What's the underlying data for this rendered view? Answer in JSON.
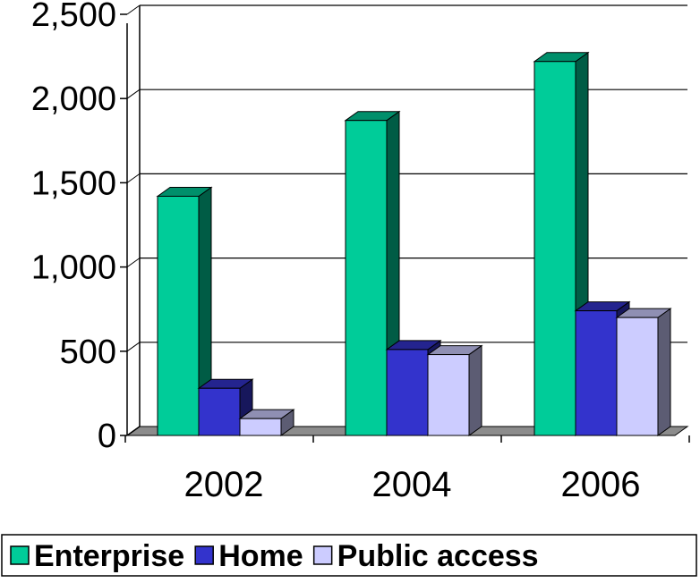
{
  "chart_data": {
    "type": "bar",
    "style": "3d-clustered",
    "categories": [
      "2002",
      "2004",
      "2006"
    ],
    "series": [
      {
        "name": "Enterprise",
        "values": [
          1420,
          1870,
          2220
        ],
        "color": "#00CC99"
      },
      {
        "name": "Home",
        "values": [
          280,
          510,
          740
        ],
        "color": "#3333CC"
      },
      {
        "name": "Public access",
        "values": [
          100,
          480,
          700
        ],
        "color": "#CCCCFF"
      }
    ],
    "ylim": [
      0,
      2500
    ],
    "yticks": [
      0,
      500,
      1000,
      1500,
      2000,
      2500
    ],
    "ytick_labels": [
      "0",
      "500",
      "1,000",
      "1,500",
      "2,000",
      "2,500"
    ],
    "grid": true,
    "legend_position": "bottom",
    "title": "",
    "xlabel": "",
    "ylabel": ""
  }
}
